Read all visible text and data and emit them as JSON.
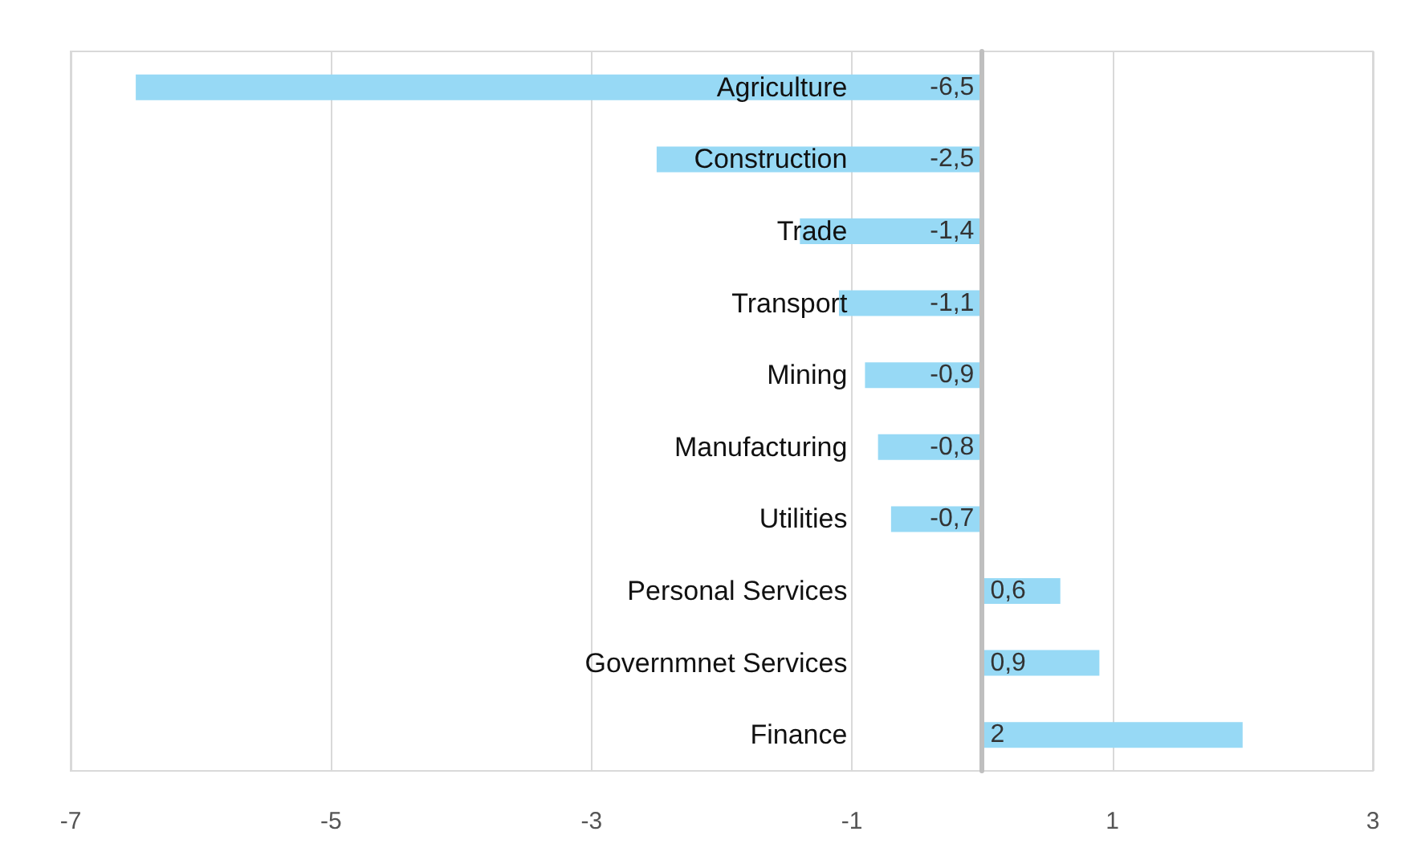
{
  "chart_data": {
    "type": "bar",
    "orientation": "horizontal",
    "categories": [
      "Agriculture",
      "Construction",
      "Trade",
      "Transport",
      "Mining",
      "Manufacturing",
      "Utilities",
      "Personal Services",
      "Governmnet Services",
      "Finance"
    ],
    "values": [
      -6.5,
      -2.5,
      -1.4,
      -1.1,
      -0.9,
      -0.8,
      -0.7,
      0.6,
      0.9,
      2
    ],
    "value_labels": [
      "-6,5",
      "-2,5",
      "-1,4",
      "-1,1",
      "-0,9",
      "-0,8",
      "-0,7",
      "0,6",
      "0,9",
      "2"
    ],
    "color": "#97d9f5",
    "xlim": [
      -7,
      3
    ],
    "xticks": [
      -7,
      -5,
      -3,
      -1,
      1,
      3
    ],
    "grid": "x"
  }
}
